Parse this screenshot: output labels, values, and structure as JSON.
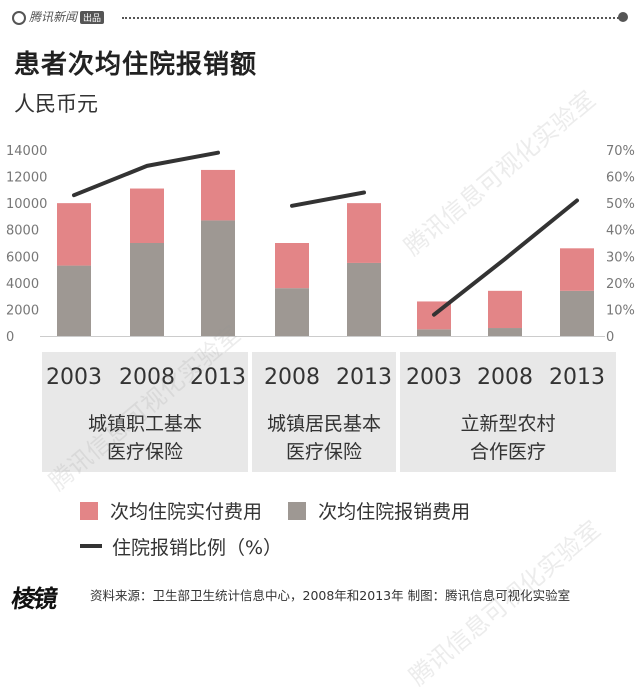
{
  "header": {
    "brand_text": "腾讯新闻",
    "brand_badge": "出品"
  },
  "title": "患者次均住院报销额",
  "unit": "人民币元",
  "chart_data": {
    "type": "bar",
    "stacked": true,
    "dual_axis": true,
    "y_left": {
      "min": 0,
      "max": 14000,
      "ticks": [
        0,
        2000,
        4000,
        6000,
        8000,
        10000,
        12000,
        14000
      ]
    },
    "y_right": {
      "min": 0,
      "max": 70,
      "ticks": [
        "0",
        "10%",
        "20%",
        "30%",
        "40%",
        "50%",
        "60%",
        "70%"
      ]
    },
    "groups": [
      {
        "lines": [
          "城镇职工基本",
          "医疗保险"
        ],
        "years": [
          "2003",
          "2008",
          "2013"
        ]
      },
      {
        "lines": [
          "城镇居民基本",
          "医疗保险"
        ],
        "years": [
          "2008",
          "2013"
        ]
      },
      {
        "lines": [
          "立新型农村",
          "合作医疗"
        ],
        "years": [
          "2003",
          "2008",
          "2013"
        ]
      }
    ],
    "series": [
      {
        "name": "次均住院报销费用",
        "color": "#9e9893",
        "values": [
          5300,
          7000,
          8700,
          3600,
          5500,
          500,
          600,
          3400
        ]
      },
      {
        "name": "次均住院实付费用",
        "color": "#e38587",
        "values": [
          4700,
          4100,
          3800,
          3400,
          4500,
          2100,
          2800,
          3200
        ]
      },
      {
        "name": "住院报销比例（%）",
        "color": "#333333",
        "type": "line",
        "axis": "right",
        "values": [
          53,
          64,
          69,
          49,
          54,
          8,
          29,
          51
        ]
      }
    ]
  },
  "legend": {
    "paid": "次均住院实付费用",
    "reimbursed": "次均住院报销费用",
    "ratio": "住院报销比例（%）"
  },
  "footer": {
    "logo": "棱镜",
    "source": "资料来源：卫生部卫生统计信息中心，2008年和2013年  制图：腾讯信息可视化实验室"
  },
  "watermark": "腾讯信息可视化实验室"
}
